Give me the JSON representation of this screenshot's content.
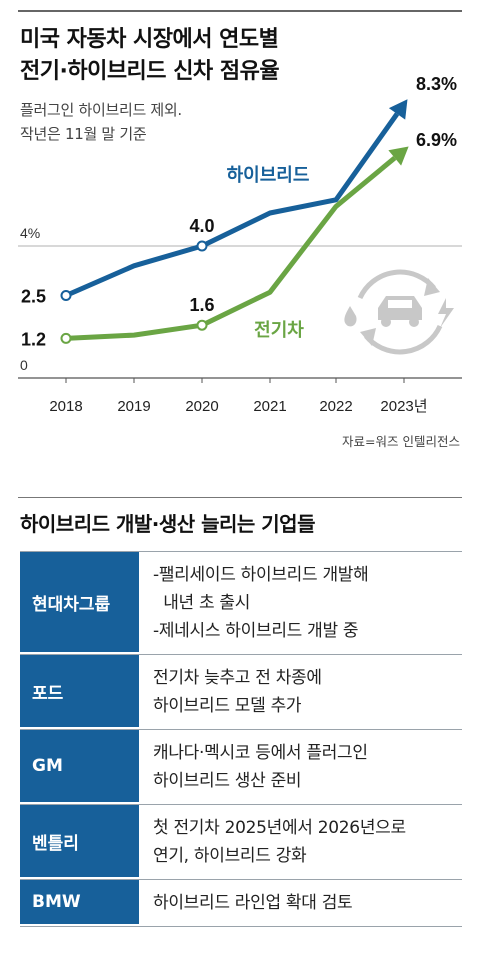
{
  "header": {
    "title_line1": "미국 자동차 시장에서 연도별",
    "title_line2": "전기·하이브리드 신차 점유율",
    "subtitle_line1": "플러그인 하이브리드 제외.",
    "subtitle_line2": "작년은 11월 말 기준"
  },
  "chart_data": {
    "type": "line",
    "categories": [
      "2018",
      "2019",
      "2020",
      "2021",
      "2022",
      "2023년"
    ],
    "series": [
      {
        "name": "하이브리드",
        "values": [
          2.5,
          3.4,
          4.0,
          5.0,
          5.4,
          8.3
        ],
        "color": "#17609a",
        "data_labels": [
          {
            "index": 0,
            "text": "2.5"
          },
          {
            "index": 2,
            "text": "4.0"
          },
          {
            "index": 5,
            "text": "8.3%"
          }
        ]
      },
      {
        "name": "전기차",
        "values": [
          1.2,
          1.3,
          1.6,
          2.6,
          5.2,
          6.9
        ],
        "color": "#6aa544",
        "data_labels": [
          {
            "index": 0,
            "text": "1.2"
          },
          {
            "index": 2,
            "text": "1.6"
          },
          {
            "index": 5,
            "text": "6.9%"
          }
        ]
      }
    ],
    "y_ticks": [
      {
        "value": 0,
        "label": "0"
      },
      {
        "value": 4,
        "label": "4%"
      }
    ],
    "ylim": [
      0,
      8.3
    ],
    "grid": true,
    "icon": "car-hybrid-icon"
  },
  "source": "자료=워즈 인텔리전스",
  "companies": {
    "title": "하이브리드 개발·생산 늘리는 기업들",
    "rows": [
      {
        "name": "현대차그룹",
        "lines": [
          "-팰리세이드 하이브리드 개발해",
          "  내년 초 출시",
          "-제네시스 하이브리드 개발 중"
        ]
      },
      {
        "name": "포드",
        "lines": [
          "전기차 늦추고 전 차종에",
          "하이브리드 모델 추가"
        ]
      },
      {
        "name": "GM",
        "lines": [
          "캐나다·멕시코 등에서 플러그인",
          "하이브리드 생산 준비"
        ]
      },
      {
        "name": "벤틀리",
        "lines": [
          "첫 전기차 2025년에서 2026년으로",
          "연기, 하이브리드 강화"
        ]
      },
      {
        "name": "BMW",
        "lines": [
          "하이브리드 라인업 확대 검토"
        ]
      }
    ]
  },
  "colors": {
    "hybrid": "#17609a",
    "ev": "#6aa544",
    "table_header": "#17609a",
    "icon": "#c8c8c8"
  }
}
